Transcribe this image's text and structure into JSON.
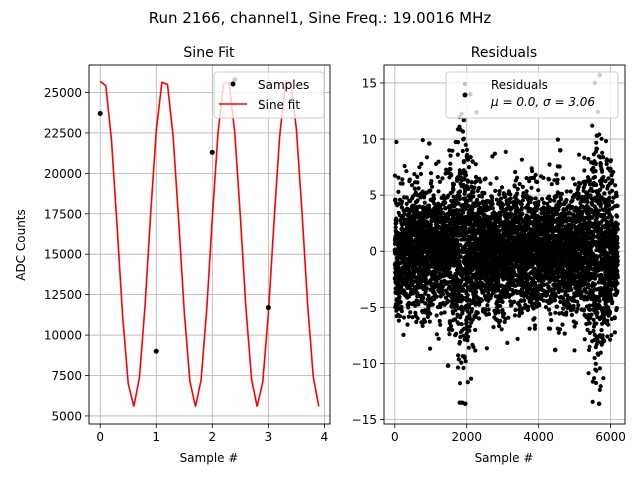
{
  "suptitle": "Run 2166, channel1, Sine Freq.: 19.0016 MHz",
  "chart_data": [
    {
      "type": "line",
      "title": "Sine Fit",
      "xlabel": "Sample #",
      "ylabel": "ADC Counts",
      "xlim": [
        -0.2,
        4.1
      ],
      "ylim": [
        4500,
        26700
      ],
      "xticks": [
        0,
        1,
        2,
        3,
        4
      ],
      "yticks": [
        5000,
        7500,
        10000,
        12500,
        15000,
        17500,
        20000,
        22500,
        25000
      ],
      "grid": true,
      "legend": {
        "position": "top-right",
        "entries": [
          "Samples",
          "Sine fit"
        ]
      },
      "samples": {
        "name": "Samples",
        "color": "#000000",
        "x": [
          0,
          1,
          2,
          2.4,
          3
        ],
        "y": [
          23700,
          9000,
          21300,
          25800,
          11700
        ]
      },
      "fit": {
        "name": "Sine fit",
        "color": "#ff0000",
        "sine": {
          "offset": 15775,
          "amplitude": 10200,
          "cycles_per_sample": 0.9052,
          "phase_deg": 76.4
        },
        "x_range": [
          0,
          3.9
        ],
        "step": 0.1
      }
    },
    {
      "type": "scatter",
      "title": "Residuals",
      "xlabel": "Sample #",
      "ylabel": "",
      "xlim": [
        -300,
        6400
      ],
      "ylim": [
        -15.4,
        16.6
      ],
      "xticks": [
        0,
        2000,
        4000,
        6000
      ],
      "yticks": [
        -15,
        -10,
        -5,
        0,
        5,
        10,
        15
      ],
      "grid": true,
      "legend": {
        "position": "top-right",
        "entries": [
          "Residuals",
          "μ = 0.0, σ = 3.06"
        ]
      },
      "series": {
        "name": "Residuals",
        "color": "#000000",
        "n_points": 6200,
        "x_range": [
          0,
          6200
        ],
        "mean": 0.0,
        "sigma": 3.06,
        "highlights": [
          {
            "x": 1960,
            "y": -13.6
          },
          {
            "x": 5680,
            "y": -13.6
          },
          {
            "x": 5700,
            "y": 15.7
          },
          {
            "x": 2100,
            "y": 14.0
          },
          {
            "x": 1920,
            "y": 11.7
          },
          {
            "x": 5620,
            "y": 10.3
          },
          {
            "x": 960,
            "y": 9.6
          },
          {
            "x": 4600,
            "y": 9.0
          },
          {
            "x": 1480,
            "y": -10.2
          },
          {
            "x": 4460,
            "y": -8.8
          }
        ]
      }
    }
  ],
  "legend1": {
    "samples_label": "Samples",
    "fit_label": "Sine fit"
  },
  "legend2": {
    "line1": "Residuals",
    "line2": "μ = 0.0, σ = 3.06"
  }
}
